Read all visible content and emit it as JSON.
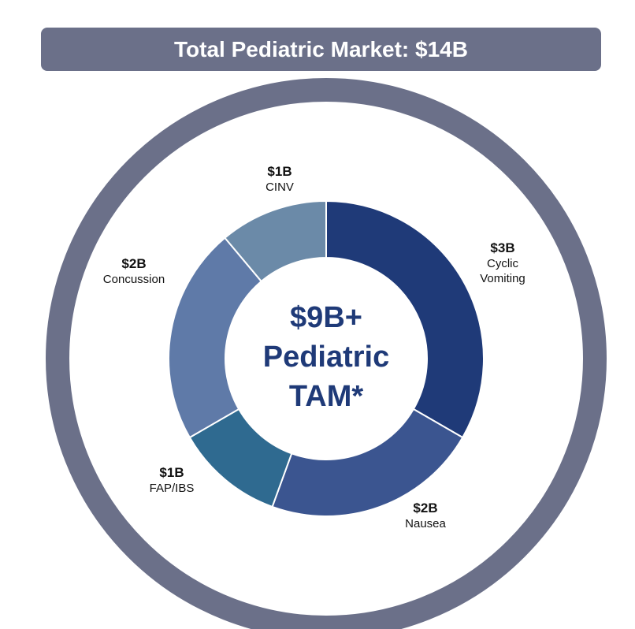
{
  "chart_data": {
    "type": "donut",
    "title": "Total Pediatric Market: $14B",
    "center_label": [
      "$9B+",
      "Pediatric",
      "TAM*"
    ],
    "categories": [
      "Cyclic Vomiting",
      "Nausea",
      "FAP/IBS",
      "Concussion",
      "CINV"
    ],
    "values": [
      3,
      2,
      1,
      2,
      1
    ],
    "value_labels": [
      "$3B",
      "$2B",
      "$1B",
      "$2B",
      "$1B"
    ],
    "colors": [
      "#1f3a78",
      "#3b5590",
      "#2f6a90",
      "#5f7aa8",
      "#6b8aa8"
    ]
  }
}
